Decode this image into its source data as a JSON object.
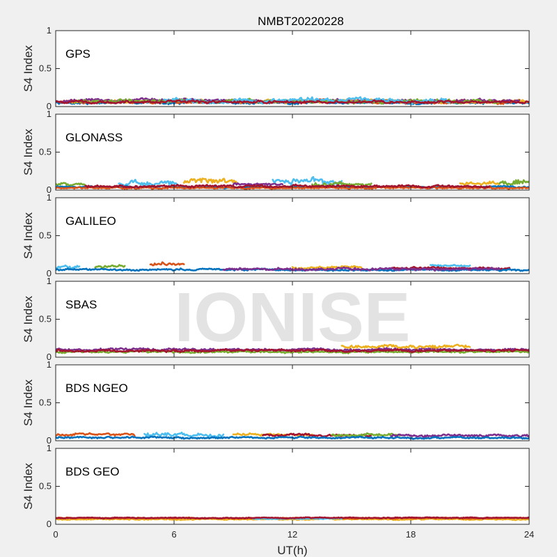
{
  "chart_data": {
    "type": "scatter",
    "title": "NMBT20220228",
    "xlabel": "UT(h)",
    "xlim": [
      0,
      24
    ],
    "xticks": [
      "0",
      "6",
      "12",
      "18",
      "24"
    ],
    "watermark": "IONISE",
    "series_colors": [
      "#0072bd",
      "#d95319",
      "#edb120",
      "#7e2f8e",
      "#77ac30",
      "#4dbeee",
      "#a2142f"
    ],
    "panels": [
      {
        "label": "GPS",
        "ylabel": "S4 Index",
        "ylim": [
          0,
          1
        ],
        "yticks": [
          "0",
          "0.5",
          "1"
        ],
        "tracks": [
          {
            "color": 0,
            "t_start": 0.0,
            "t_end": 24.0,
            "base": 0.05,
            "amp": 0.02
          },
          {
            "color": 1,
            "t_start": 0.2,
            "t_end": 23.8,
            "base": 0.06,
            "amp": 0.025
          },
          {
            "color": 2,
            "t_start": 0.5,
            "t_end": 24.0,
            "base": 0.07,
            "amp": 0.03
          },
          {
            "color": 3,
            "t_start": 0.0,
            "t_end": 23.5,
            "base": 0.08,
            "amp": 0.025
          },
          {
            "color": 4,
            "t_start": 1.0,
            "t_end": 22.5,
            "base": 0.07,
            "amp": 0.03
          },
          {
            "color": 5,
            "t_start": 5.5,
            "t_end": 20.0,
            "base": 0.08,
            "amp": 0.035
          },
          {
            "color": 6,
            "t_start": 0.0,
            "t_end": 24.0,
            "base": 0.06,
            "amp": 0.02
          }
        ]
      },
      {
        "label": "GLONASS",
        "ylabel": "S4 Index",
        "ylim": [
          0,
          1
        ],
        "yticks": [
          "0",
          "0.5",
          "1"
        ],
        "tracks": [
          {
            "color": 4,
            "t_start": 0.0,
            "t_end": 1.5,
            "base": 0.08,
            "amp": 0.03
          },
          {
            "color": 5,
            "t_start": 3.2,
            "t_end": 6.2,
            "base": 0.09,
            "amp": 0.04
          },
          {
            "color": 2,
            "t_start": 6.5,
            "t_end": 9.2,
            "base": 0.11,
            "amp": 0.05
          },
          {
            "color": 3,
            "t_start": 9.0,
            "t_end": 11.5,
            "base": 0.08,
            "amp": 0.02
          },
          {
            "color": 5,
            "t_start": 11.0,
            "t_end": 14.5,
            "base": 0.12,
            "amp": 0.05
          },
          {
            "color": 4,
            "t_start": 13.0,
            "t_end": 16.0,
            "base": 0.07,
            "amp": 0.03
          },
          {
            "color": 2,
            "t_start": 20.5,
            "t_end": 22.5,
            "base": 0.09,
            "amp": 0.03
          },
          {
            "color": 4,
            "t_start": 22.5,
            "t_end": 24.0,
            "base": 0.1,
            "amp": 0.06
          },
          {
            "color": 0,
            "t_start": 0.0,
            "t_end": 24.0,
            "base": 0.04,
            "amp": 0.015
          },
          {
            "color": 1,
            "t_start": 0.0,
            "t_end": 24.0,
            "base": 0.03,
            "amp": 0.015
          },
          {
            "color": 6,
            "t_start": 1.5,
            "t_end": 22.0,
            "base": 0.05,
            "amp": 0.02
          }
        ]
      },
      {
        "label": "GALILEO",
        "ylabel": "S4 Index",
        "ylim": [
          0,
          1
        ],
        "yticks": [
          "0",
          "0.5",
          "1"
        ],
        "tracks": [
          {
            "color": 5,
            "t_start": 0.0,
            "t_end": 1.2,
            "base": 0.08,
            "amp": 0.03
          },
          {
            "color": 1,
            "t_start": 4.8,
            "t_end": 6.5,
            "base": 0.13,
            "amp": 0.03
          },
          {
            "color": 4,
            "t_start": 2.0,
            "t_end": 3.5,
            "base": 0.09,
            "amp": 0.02
          },
          {
            "color": 2,
            "t_start": 12.0,
            "t_end": 15.5,
            "base": 0.08,
            "amp": 0.02
          },
          {
            "color": 5,
            "t_start": 19.0,
            "t_end": 21.0,
            "base": 0.11,
            "amp": 0.02
          },
          {
            "color": 6,
            "t_start": 17.0,
            "t_end": 23.0,
            "base": 0.07,
            "amp": 0.02
          },
          {
            "color": 0,
            "t_start": 0.0,
            "t_end": 24.0,
            "base": 0.05,
            "amp": 0.015
          },
          {
            "color": 3,
            "t_start": 8.5,
            "t_end": 22.5,
            "base": 0.06,
            "amp": 0.02
          }
        ]
      },
      {
        "label": "SBAS",
        "ylabel": "S4 Index",
        "ylim": [
          0,
          1
        ],
        "yticks": [
          "0",
          "0.5",
          "1"
        ],
        "tracks": [
          {
            "color": 3,
            "t_start": 0.0,
            "t_end": 24.0,
            "base": 0.1,
            "amp": 0.02
          },
          {
            "color": 4,
            "t_start": 0.0,
            "t_end": 24.0,
            "base": 0.07,
            "amp": 0.015
          },
          {
            "color": 2,
            "t_start": 14.5,
            "t_end": 21.0,
            "base": 0.14,
            "amp": 0.03
          },
          {
            "color": 6,
            "t_start": 0.0,
            "t_end": 24.0,
            "base": 0.085,
            "amp": 0.02
          }
        ]
      },
      {
        "label": "BDS NGEO",
        "ylabel": "S4 Index",
        "ylim": [
          0,
          1
        ],
        "yticks": [
          "0",
          "0.5",
          "1"
        ],
        "tracks": [
          {
            "color": 1,
            "t_start": 0.0,
            "t_end": 4.0,
            "base": 0.08,
            "amp": 0.02
          },
          {
            "color": 5,
            "t_start": 4.5,
            "t_end": 8.5,
            "base": 0.08,
            "amp": 0.03
          },
          {
            "color": 2,
            "t_start": 9.0,
            "t_end": 13.0,
            "base": 0.08,
            "amp": 0.02
          },
          {
            "color": 6,
            "t_start": 10.5,
            "t_end": 16.0,
            "base": 0.07,
            "amp": 0.02
          },
          {
            "color": 4,
            "t_start": 14.0,
            "t_end": 17.5,
            "base": 0.08,
            "amp": 0.02
          },
          {
            "color": 3,
            "t_start": 17.0,
            "t_end": 24.0,
            "base": 0.07,
            "amp": 0.02
          },
          {
            "color": 0,
            "t_start": 0.0,
            "t_end": 24.0,
            "base": 0.04,
            "amp": 0.015
          }
        ]
      },
      {
        "label": "BDS GEO",
        "ylabel": "S4 Index",
        "ylim": [
          0,
          1
        ],
        "yticks": [
          "0",
          "0.5",
          "1"
        ],
        "tracks": [
          {
            "color": 2,
            "t_start": 0.0,
            "t_end": 24.0,
            "base": 0.065,
            "amp": 0.01
          },
          {
            "color": 1,
            "t_start": 0.0,
            "t_end": 24.0,
            "base": 0.08,
            "amp": 0.01
          },
          {
            "color": 5,
            "t_start": 10.0,
            "t_end": 14.5,
            "base": 0.075,
            "amp": 0.008
          },
          {
            "color": 6,
            "t_start": 0.0,
            "t_end": 24.0,
            "base": 0.085,
            "amp": 0.008
          }
        ]
      }
    ]
  }
}
